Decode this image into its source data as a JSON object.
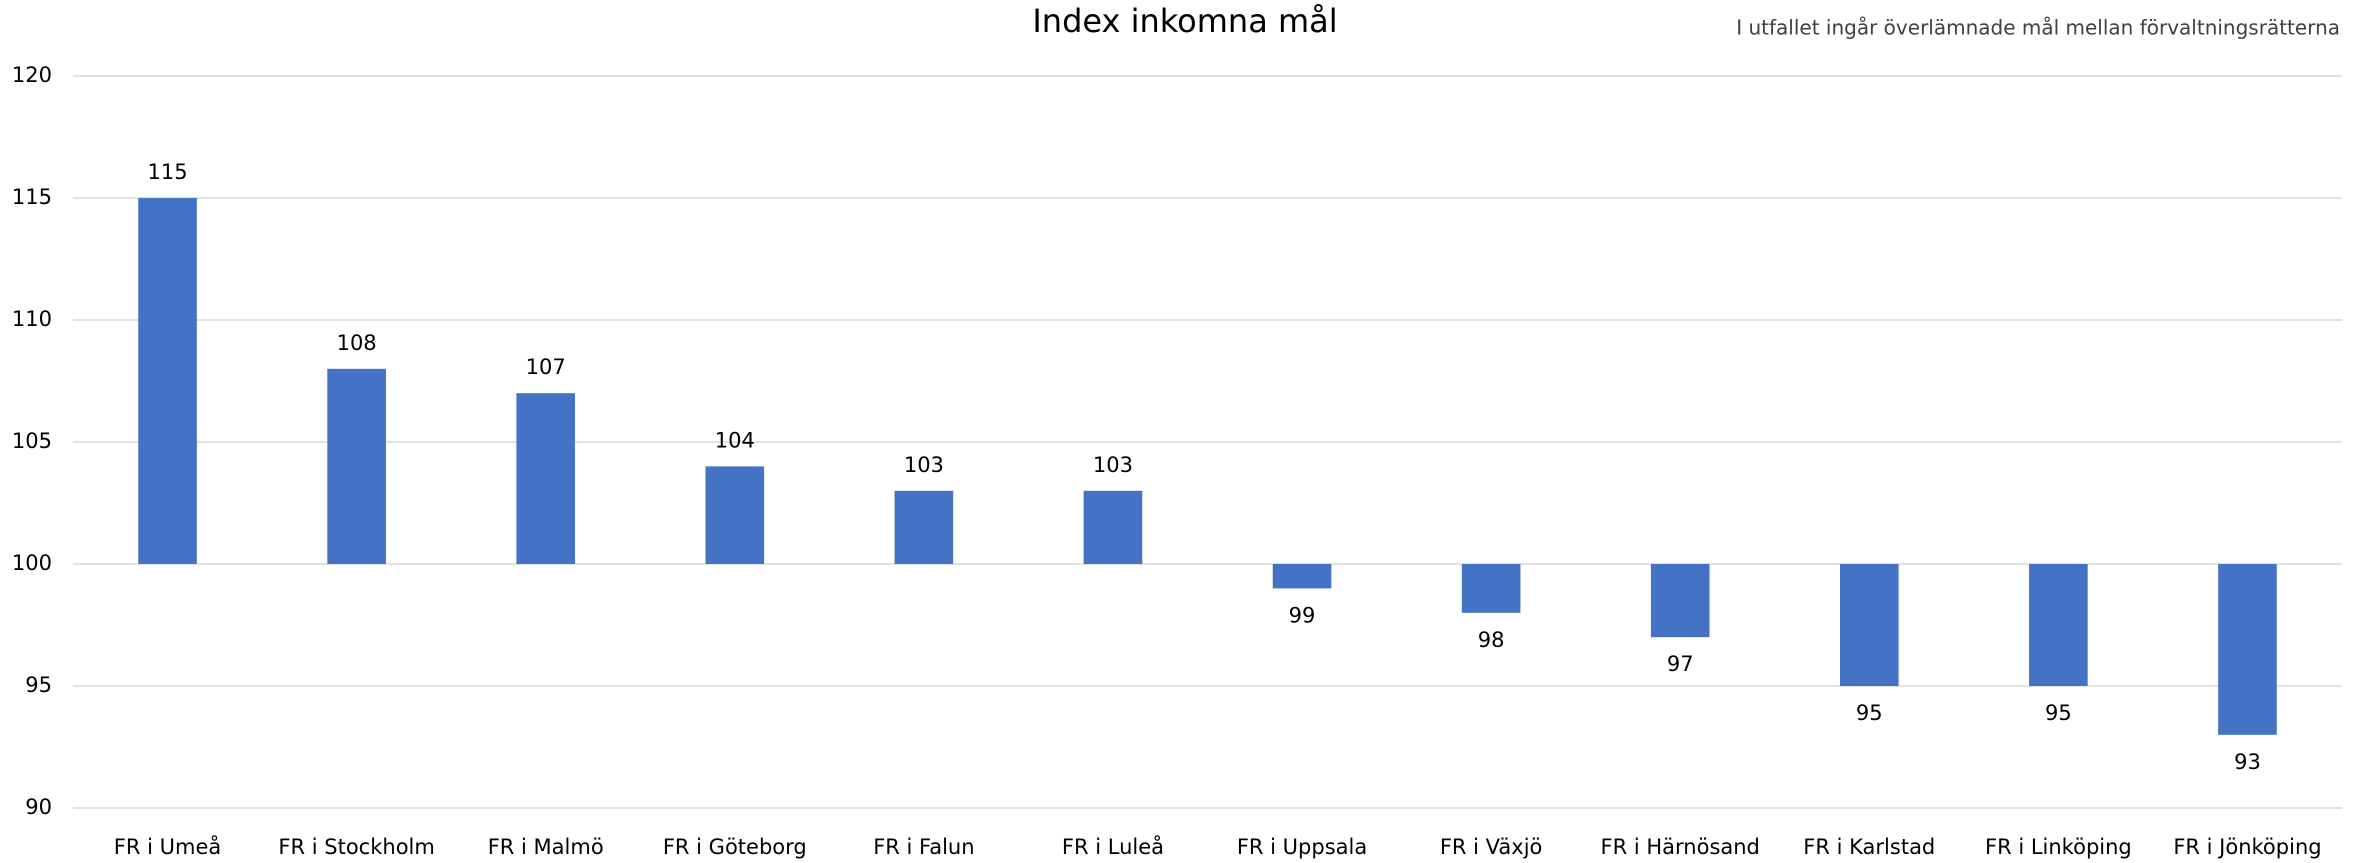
{
  "chart_data": {
    "type": "bar",
    "title": "Index inkomna mål",
    "subtitle": "I utfallet ingår överlämnade mål mellan förvaltningsrätterna",
    "categories": [
      "FR i Umeå",
      "FR i Stockholm",
      "FR i Malmö",
      "FR i Göteborg",
      "FR i Falun",
      "FR i Luleå",
      "FR i Uppsala",
      "FR i Växjö",
      "FR i Härnösand",
      "FR i Karlstad",
      "FR i Linköping",
      "FR i Jönköping"
    ],
    "values": [
      115,
      108,
      107,
      104,
      103,
      103,
      99,
      98,
      97,
      95,
      95,
      93
    ],
    "color": "#4472c4",
    "bar_base": 100,
    "ylim": [
      90,
      120
    ],
    "yticks": [
      90,
      95,
      100,
      105,
      110,
      115,
      120
    ],
    "grid": true
  }
}
